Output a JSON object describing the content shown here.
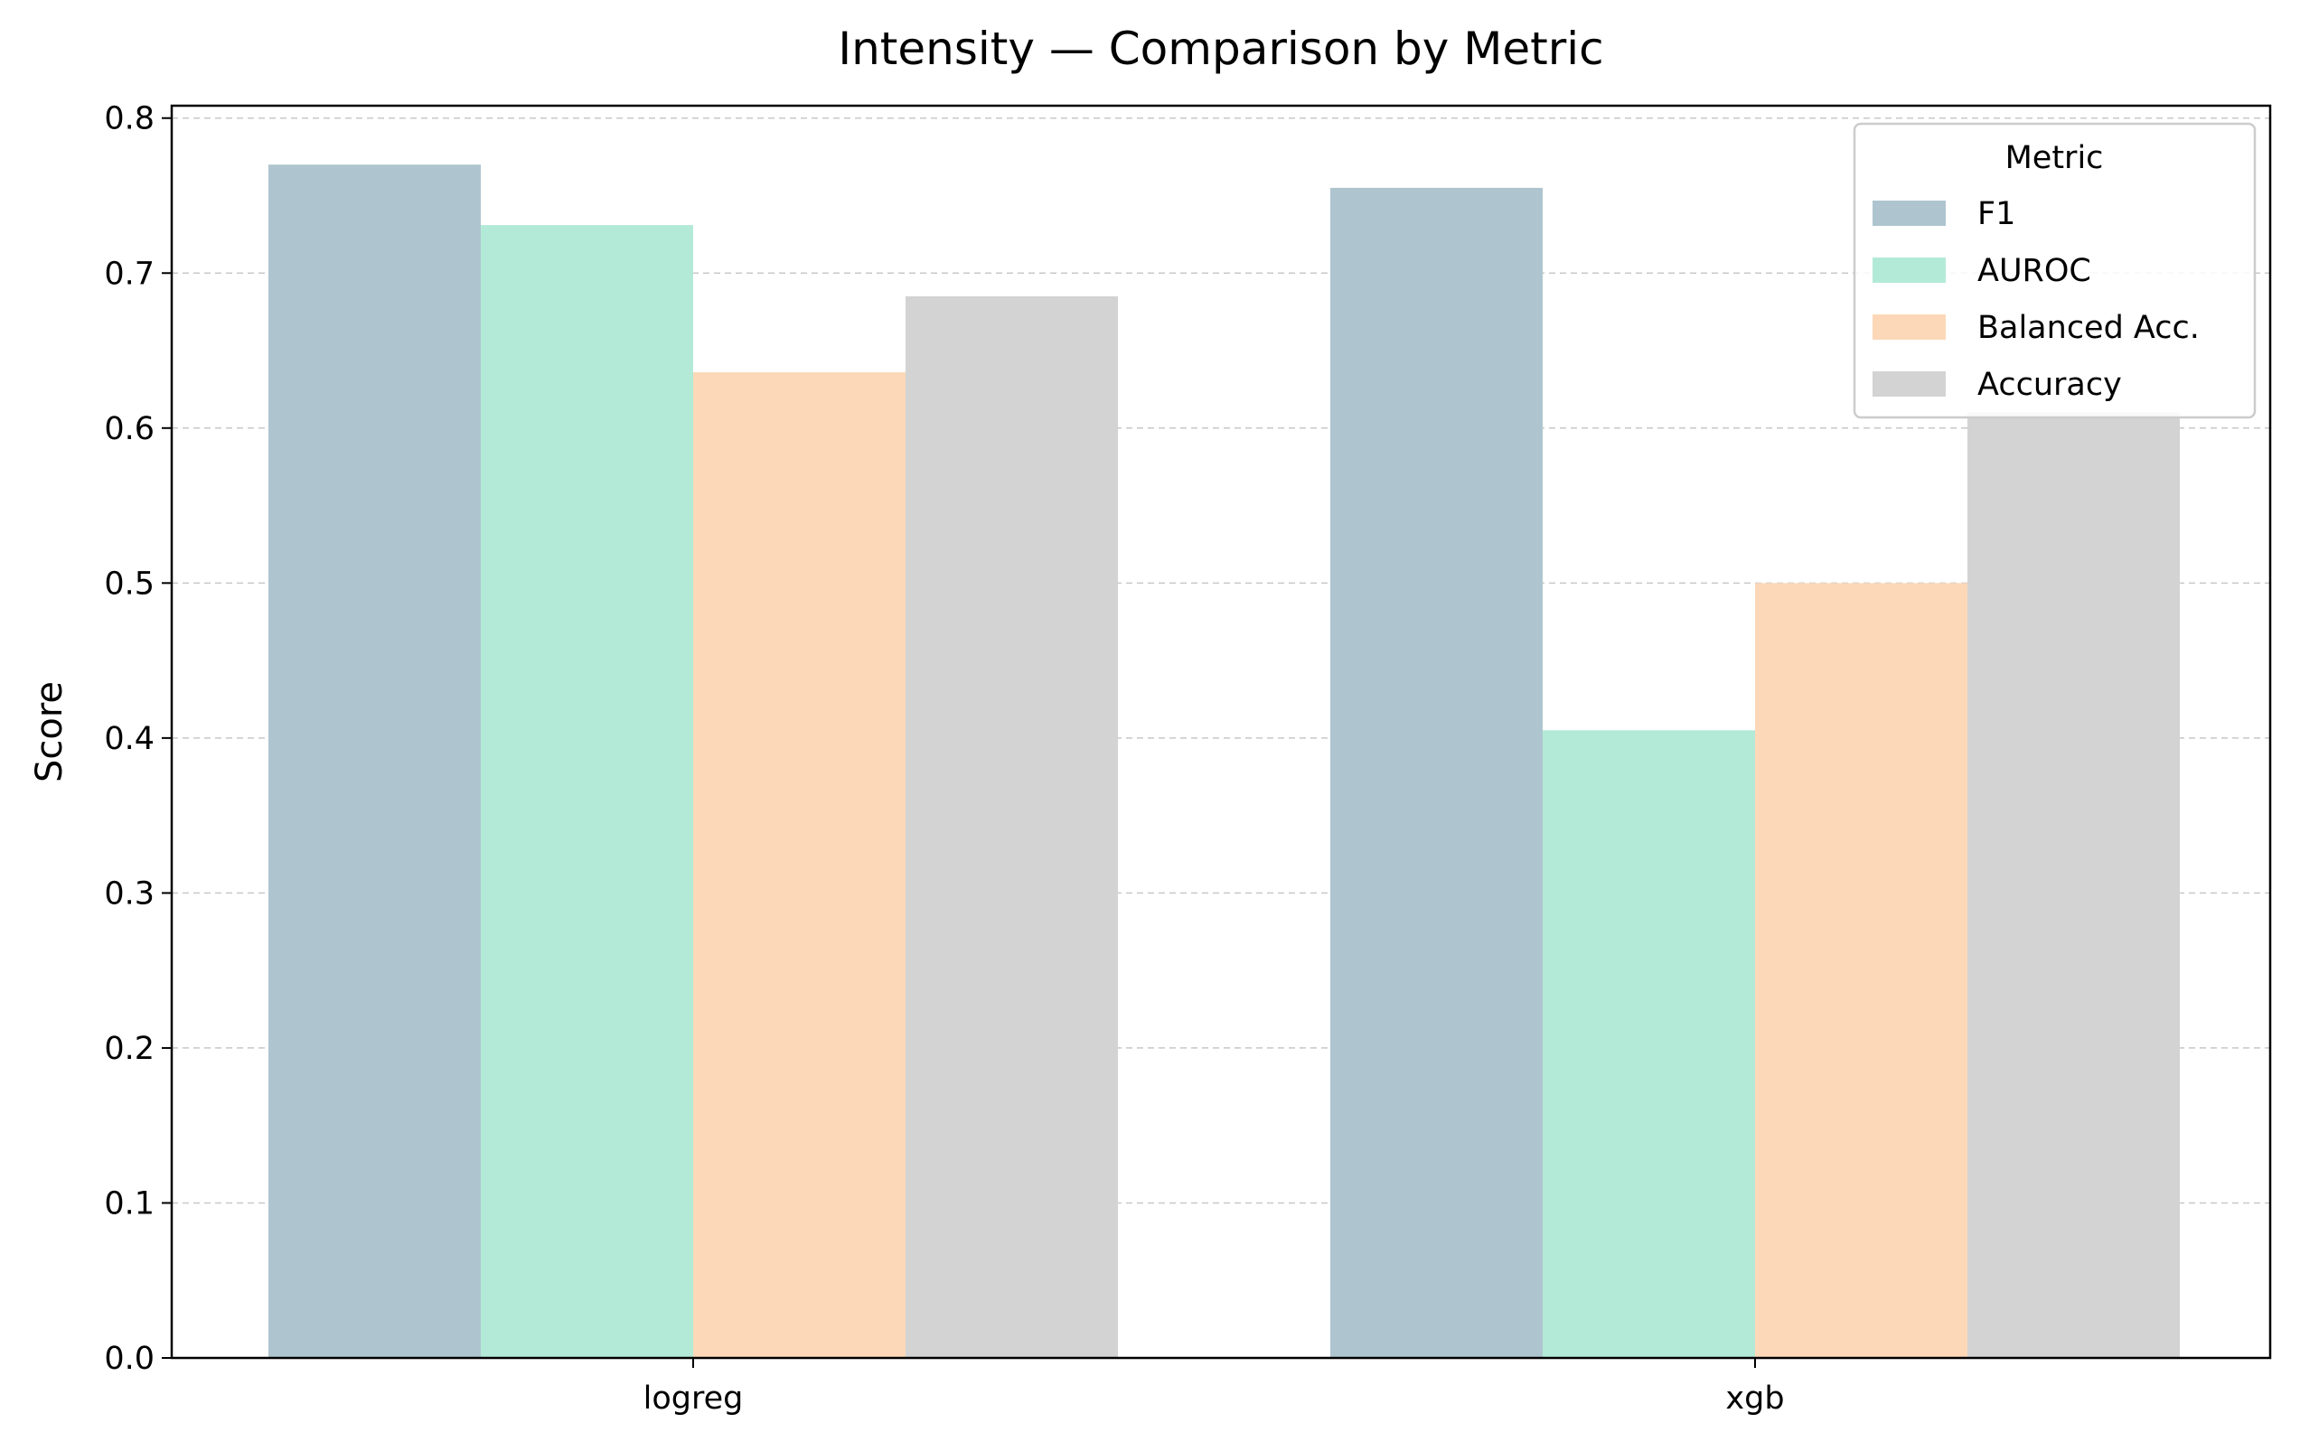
{
  "chart_data": {
    "type": "bar",
    "title": "Intensity — Comparison by Metric",
    "xlabel": "",
    "ylabel": "Score",
    "categories": [
      "logreg",
      "xgb"
    ],
    "series": [
      {
        "name": "F1",
        "values": [
          0.77,
          0.755
        ],
        "color": "#aec5cf"
      },
      {
        "name": "AUROC",
        "values": [
          0.731,
          0.405
        ],
        "color": "#b3ead7"
      },
      {
        "name": "Balanced Acc.",
        "values": [
          0.636,
          0.5
        ],
        "color": "#fcd8b8"
      },
      {
        "name": "Accuracy",
        "values": [
          0.685,
          0.61
        ],
        "color": "#d3d3d3"
      }
    ],
    "ylim": [
      0,
      0.808
    ],
    "yticks": [
      "0.0",
      "0.1",
      "0.2",
      "0.3",
      "0.4",
      "0.5",
      "0.6",
      "0.7",
      "0.8"
    ],
    "grid": "y, dashed",
    "legend": {
      "title": "Metric",
      "placement": "top-right"
    }
  }
}
